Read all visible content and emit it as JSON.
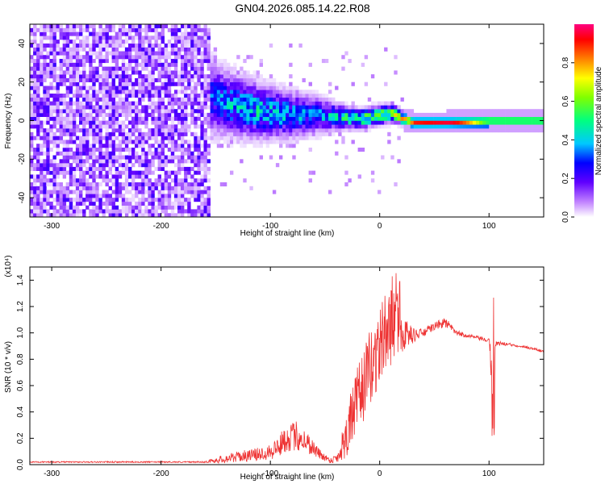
{
  "title": "GN04.2026.085.14.22.R08",
  "chart_data": [
    {
      "type": "heatmap",
      "xlabel": "Height of straight line (km)",
      "ylabel": "Frequency (Hz)",
      "xlim": [
        -320,
        150
      ],
      "ylim": [
        -50,
        50
      ],
      "xticks": [
        -300,
        -200,
        -100,
        0,
        100
      ],
      "yticks": [
        -40,
        -20,
        0,
        20,
        40
      ],
      "colorbar": {
        "label": "Normalized spectral amplitude",
        "range": [
          0,
          1
        ],
        "ticks": [
          "0.0",
          "0.2",
          "0.4",
          "0.6",
          "0.8"
        ],
        "colors": [
          "#ffffff",
          "#8000ff",
          "#0000ff",
          "#00c8ff",
          "#00ff80",
          "#80ff00",
          "#ffff00",
          "#ff8000",
          "#ff0000",
          "#ff0080"
        ]
      },
      "ridge": {
        "x": [
          -160,
          -140,
          -120,
          -100,
          -80,
          -60,
          -40,
          -20,
          0,
          10,
          20,
          30,
          60,
          100,
          150
        ],
        "center": [
          12,
          8,
          5,
          3,
          2,
          2,
          1,
          0,
          2,
          3,
          0,
          -2,
          -2,
          -1,
          -1
        ],
        "halfwidth": [
          12,
          10,
          9,
          8,
          7,
          6,
          4,
          3,
          3,
          3,
          2,
          1,
          1,
          1,
          1
        ],
        "peak": [
          0.25,
          0.35,
          0.4,
          0.38,
          0.35,
          0.3,
          0.4,
          0.55,
          0.6,
          0.5,
          0.8,
          0.9,
          0.95,
          0.95,
          0.9
        ]
      },
      "noise_region_x": [
        -320,
        -155
      ]
    },
    {
      "type": "line",
      "xlabel": "Height of straight line (km)",
      "ylabel": "SNR (10 * v/v)",
      "yscale_note": "(x10⁴)",
      "xlim": [
        -320,
        150
      ],
      "ylim": [
        0,
        1.5
      ],
      "xticks": [
        -300,
        -200,
        -100,
        0,
        100
      ],
      "yticks": [
        0.0,
        0.2,
        0.4,
        0.6,
        0.8,
        1.0,
        1.2,
        1.4
      ],
      "color": "#ee3333",
      "series": [
        {
          "x": [
            -320,
            -300,
            -250,
            -200,
            -160,
            -145,
            -130,
            -110,
            -95,
            -85,
            -75,
            -65,
            -55,
            -45,
            -38,
            -30,
            -20,
            -10,
            0,
            5,
            10,
            15,
            20,
            30,
            40,
            50,
            60,
            70,
            80,
            100,
            104,
            106,
            110,
            130,
            150
          ],
          "y": [
            0.02,
            0.02,
            0.02,
            0.02,
            0.02,
            0.04,
            0.06,
            0.08,
            0.12,
            0.2,
            0.22,
            0.16,
            0.08,
            0.03,
            0.06,
            0.25,
            0.5,
            0.7,
            0.9,
            1.0,
            1.05,
            1.1,
            1.0,
            0.98,
            1.0,
            1.05,
            1.08,
            1.0,
            0.98,
            0.94,
            0.6,
            0.92,
            0.92,
            0.9,
            0.86
          ],
          "noise": [
            0.005,
            0.005,
            0.005,
            0.005,
            0.005,
            0.03,
            0.04,
            0.05,
            0.08,
            0.1,
            0.12,
            0.08,
            0.04,
            0.02,
            0.05,
            0.2,
            0.25,
            0.3,
            0.3,
            0.3,
            0.3,
            0.28,
            0.15,
            0.06,
            0.03,
            0.03,
            0.04,
            0.02,
            0.015,
            0.015,
            0.3,
            0.02,
            0.015,
            0.01,
            0.01
          ]
        }
      ]
    }
  ]
}
